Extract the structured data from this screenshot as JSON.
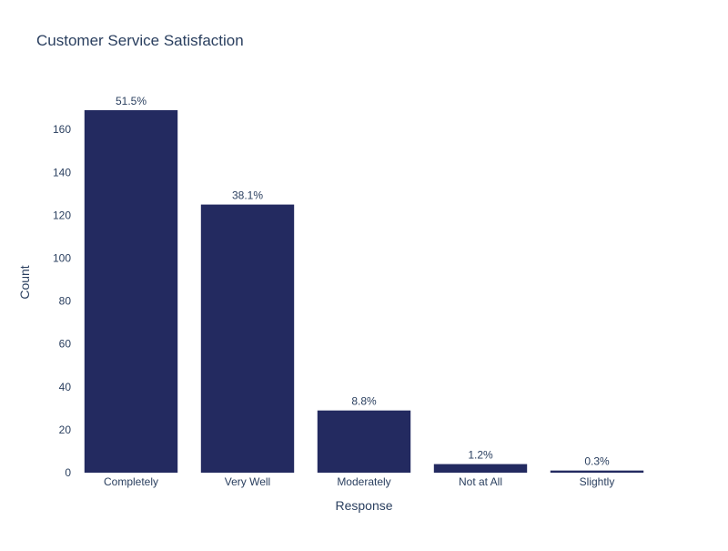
{
  "chart_data": {
    "type": "bar",
    "title": "Customer Service Satisfaction",
    "xlabel": "Response",
    "ylabel": "Count",
    "categories": [
      "Completely",
      "Very Well",
      "Moderately",
      "Not at All",
      "Slightly"
    ],
    "values": [
      169,
      125,
      29,
      4,
      1
    ],
    "data_labels": [
      "51.5%",
      "38.1%",
      "8.8%",
      "1.2%",
      "0.3%"
    ],
    "ylim": [
      0,
      177.9
    ],
    "yticks": [
      0,
      20,
      40,
      60,
      80,
      100,
      120,
      140,
      160
    ],
    "grid": false,
    "bar_color": "#232a60",
    "text_color": "#2a3f5f"
  }
}
